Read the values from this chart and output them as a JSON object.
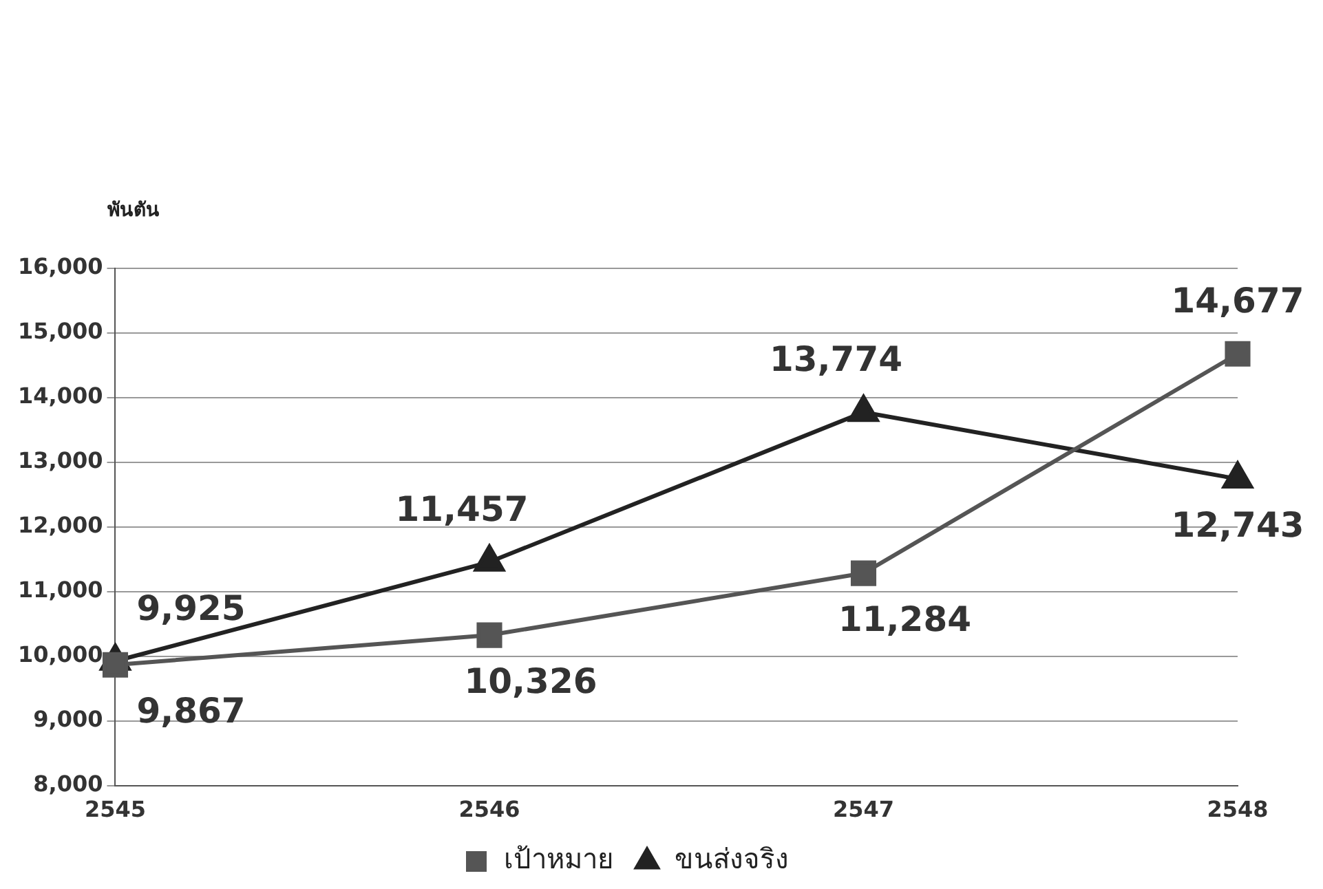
{
  "chart_data": {
    "type": "line",
    "ylabel": "พันตัน",
    "categories": [
      "2545",
      "2546",
      "2547",
      "2548"
    ],
    "series": [
      {
        "name": "เป้าหมาย",
        "color": "#555555",
        "marker": "square",
        "values": [
          9867,
          10326,
          11284,
          14677
        ],
        "value_labels": [
          "9,867",
          "10,326",
          "11,284",
          "14,677"
        ]
      },
      {
        "name": "ขนส่งจริง",
        "color": "#222222",
        "marker": "triangle",
        "values": [
          9925,
          11457,
          13774,
          12743
        ],
        "value_labels": [
          "9,925",
          "11,457",
          "13,774",
          "12,743"
        ]
      }
    ],
    "ylim": [
      8000,
      16000
    ],
    "yticks": [
      {
        "value": 8000,
        "label": "8,000"
      },
      {
        "value": 9000,
        "label": "9,000"
      },
      {
        "value": 10000,
        "label": "10,000"
      },
      {
        "value": 11000,
        "label": "11,000"
      },
      {
        "value": 12000,
        "label": "12,000"
      },
      {
        "value": 13000,
        "label": "13,000"
      },
      {
        "value": 14000,
        "label": "14,000"
      },
      {
        "value": 15000,
        "label": "15,000"
      },
      {
        "value": 16000,
        "label": "16,000"
      }
    ],
    "grid": "y",
    "legend": "bottom",
    "line_style": "solid"
  }
}
